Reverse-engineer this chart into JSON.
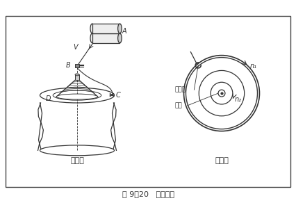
{
  "title": "图 9－20   环锭加捻",
  "label_jia": "（甲）",
  "label_yi": "（乙）",
  "label_A": "A",
  "label_B": "B",
  "label_C": "C",
  "label_D": "D",
  "label_V": "V",
  "label_n1": "n₁",
  "label_n2": "n₂",
  "label_gangsiquan": "钢丝圈",
  "label_suozi": "锭子",
  "bg_color": "#ffffff",
  "line_color": "#333333",
  "border_color": "#444444"
}
